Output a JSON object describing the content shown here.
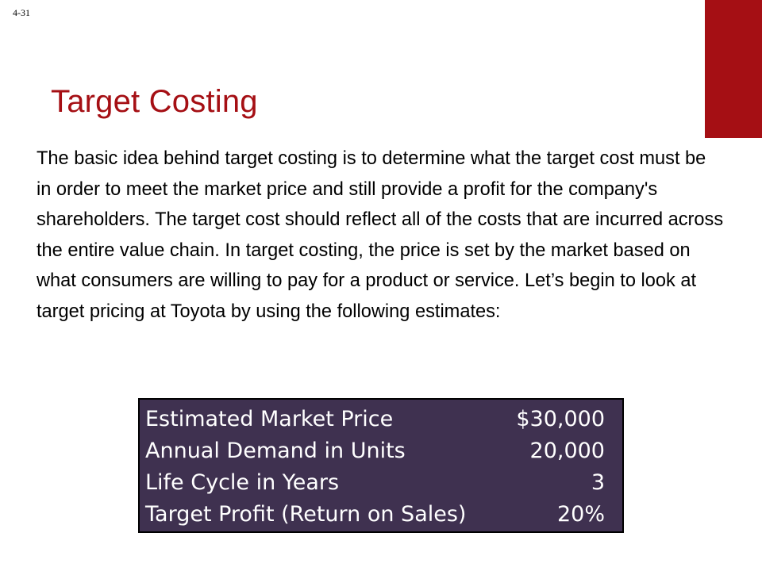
{
  "slide": {
    "page_number": "4-31",
    "title": "Target Costing",
    "body": "The basic idea behind target costing is to determine what the target cost must be in order to meet the market price and still provide a profit for the company's shareholders.  The target cost should reflect all of the costs that are incurred across the entire value chain. In target costing, the price is set by the market based on what consumers are willing to pay for a product or service. Let’s begin to look at target pricing at Toyota by using the following estimates:"
  },
  "estimates": {
    "rows": [
      {
        "label": "Estimated Market Price",
        "value": "$30,000"
      },
      {
        "label": "Annual Demand in Units",
        "value": "20,000"
      },
      {
        "label": "Life Cycle in Years",
        "value": "3"
      },
      {
        "label": "Target Profit (Return on Sales)",
        "value": "20%"
      }
    ]
  },
  "colors": {
    "accent": "#A50F14",
    "title": "#A50F14",
    "table_background": "#3F3150",
    "table_text": "#FFFFFF"
  }
}
